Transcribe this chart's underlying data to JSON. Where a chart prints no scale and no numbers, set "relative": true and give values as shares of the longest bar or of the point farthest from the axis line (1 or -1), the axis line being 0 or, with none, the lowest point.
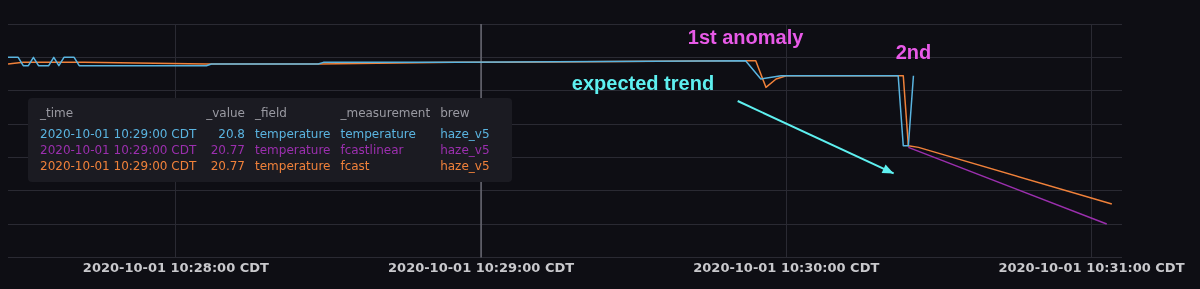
{
  "chart_data": {
    "type": "line",
    "relative": true,
    "grid": true,
    "legend": false,
    "marker": "none",
    "line_style": "solid",
    "xlim": [
      "2020-10-01T10:27:27",
      "2020-10-01T10:31:06"
    ],
    "xticks": [
      {
        "value": "2020-10-01T10:28:00",
        "label": "2020-10-01 10:28:00 CDT"
      },
      {
        "value": "2020-10-01T10:29:00",
        "label": "2020-10-01 10:29:00 CDT"
      },
      {
        "value": "2020-10-01T10:30:00",
        "label": "2020-10-01 10:30:00 CDT"
      },
      {
        "value": "2020-10-01T10:31:00",
        "label": "2020-10-01 10:31:00 CDT"
      }
    ],
    "series": [
      {
        "color": "#5ab4e0",
        "x": [
          "2020-10-01T10:27:27",
          "2020-10-01T10:27:29",
          "2020-10-01T10:27:30",
          "2020-10-01T10:27:31",
          "2020-10-01T10:27:32",
          "2020-10-01T10:27:33",
          "2020-10-01T10:27:35",
          "2020-10-01T10:27:36",
          "2020-10-01T10:27:37",
          "2020-10-01T10:27:38",
          "2020-10-01T10:27:40",
          "2020-10-01T10:27:41",
          "2020-10-01T10:28:06",
          "2020-10-01T10:28:07",
          "2020-10-01T10:28:28",
          "2020-10-01T10:28:29",
          "2020-10-01T10:28:54",
          "2020-10-01T10:28:55",
          "2020-10-01T10:29:52",
          "2020-10-01T10:29:55",
          "2020-10-01T10:29:59",
          "2020-10-01T10:30:05",
          "2020-10-01T10:30:07",
          "2020-10-01T10:30:15",
          "2020-10-01T10:30:22",
          "2020-10-01T10:30:23",
          "2020-10-01T10:30:24",
          "2020-10-01T10:30:25"
        ],
        "values": [
          1.0,
          1.0,
          0.95,
          0.95,
          1.0,
          0.95,
          0.95,
          1.0,
          0.95,
          1.0,
          1.0,
          0.95,
          0.95,
          0.96,
          0.96,
          0.97,
          0.97,
          0.97,
          0.98,
          0.87,
          0.89,
          0.89,
          0.89,
          0.89,
          0.89,
          0.47,
          0.47,
          0.89
        ]
      },
      {
        "color": "#9b2fae",
        "x": [
          "2020-10-01T10:30:24",
          "2020-10-01T10:31:03"
        ],
        "values": [
          0.46,
          0.0
        ]
      },
      {
        "color": "#f0813a",
        "x": [
          "2020-10-01T10:27:27",
          "2020-10-01T10:27:30",
          "2020-10-01T10:27:42",
          "2020-10-01T10:28:06",
          "2020-10-01T10:28:28",
          "2020-10-01T10:28:55",
          "2020-10-01T10:29:00",
          "2020-10-01T10:29:50",
          "2020-10-01T10:29:54",
          "2020-10-01T10:29:56",
          "2020-10-01T10:29:58",
          "2020-10-01T10:30:00",
          "2020-10-01T10:30:22",
          "2020-10-01T10:30:23",
          "2020-10-01T10:30:24",
          "2020-10-01T10:30:26",
          "2020-10-01T10:31:04"
        ],
        "values": [
          0.96,
          0.97,
          0.97,
          0.96,
          0.96,
          0.97,
          0.97,
          0.98,
          0.98,
          0.82,
          0.87,
          0.89,
          0.89,
          0.89,
          0.47,
          0.46,
          0.12
        ]
      }
    ],
    "ref_lines": [
      {
        "axis": "x",
        "value": "2020-10-01T10:29:00",
        "color": "#6a6a74"
      }
    ],
    "annotations": [
      {
        "text": "1st anomaly",
        "x": "2020-10-01T10:29:52",
        "y": 0.98
      },
      {
        "text": "2nd",
        "x": "2020-10-01T10:30:25",
        "y": 0.89
      },
      "expected trend",
      "_time",
      "_value",
      "_field",
      "_measurement",
      "brew",
      "2020-10-01 10:29:00 CDT",
      "20.8",
      "temperature",
      "temperature",
      "haze_v5",
      "2020-10-01 10:29:00 CDT",
      "20.77",
      "temperature",
      "fcastlinear",
      "haze_v5",
      "2020-10-01 10:29:00 CDT",
      "20.77",
      "temperature",
      "fcast",
      "haze_v5"
    ]
  }
}
